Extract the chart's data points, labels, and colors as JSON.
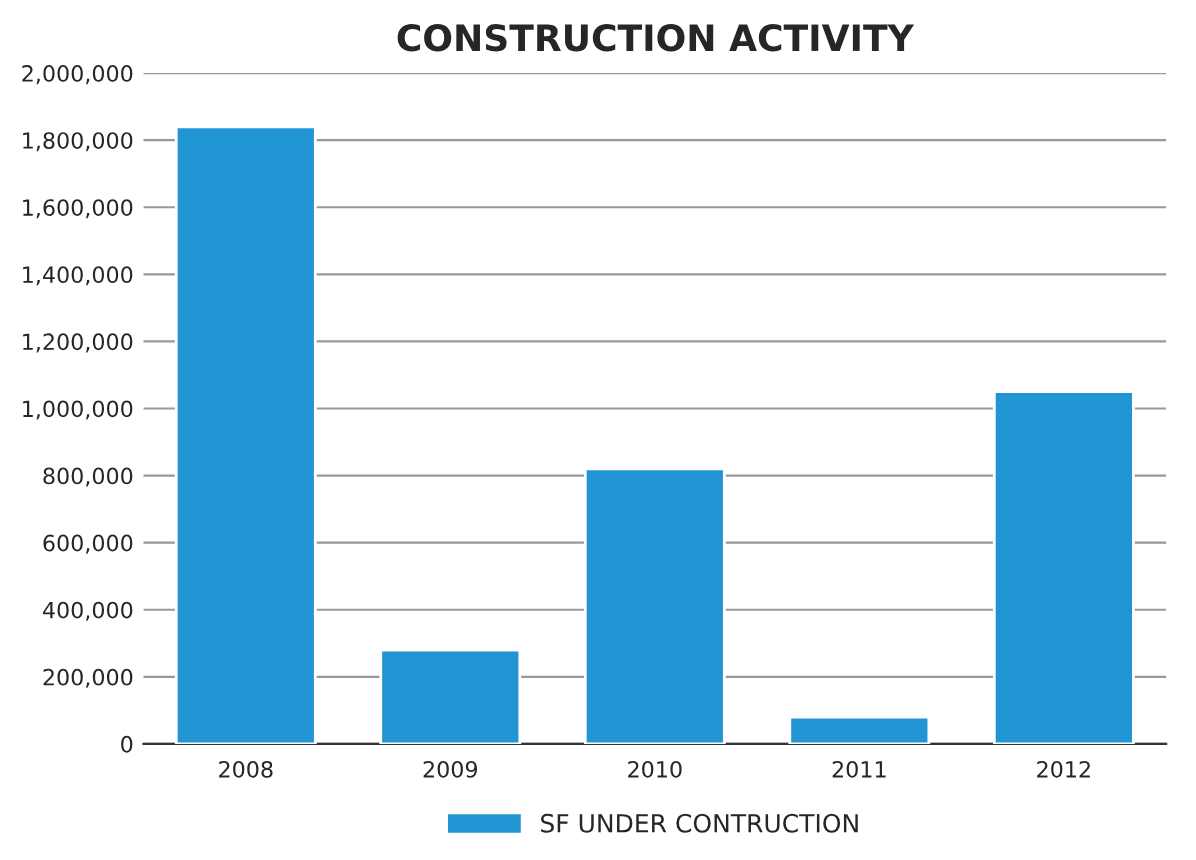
{
  "chart_data": {
    "type": "bar",
    "title": "CONSTRUCTION ACTIVITY",
    "categories": [
      "2008",
      "2009",
      "2010",
      "2011",
      "2012"
    ],
    "series": [
      {
        "name": "SF UNDER CONTRUCTION",
        "color": "#2195d3",
        "values": [
          1840000,
          280000,
          820000,
          80000,
          1050000
        ]
      }
    ],
    "ylim": [
      0,
      2000000
    ],
    "yticks": [
      {
        "value": 0,
        "label": "0"
      },
      {
        "value": 200000,
        "label": "200,000"
      },
      {
        "value": 400000,
        "label": "400,000"
      },
      {
        "value": 600000,
        "label": "600,000"
      },
      {
        "value": 800000,
        "label": "800,000"
      },
      {
        "value": 1000000,
        "label": "1,000,000"
      },
      {
        "value": 1200000,
        "label": "1,200,000"
      },
      {
        "value": 1400000,
        "label": "1,400,000"
      },
      {
        "value": 1600000,
        "label": "1,600,000"
      },
      {
        "value": 1800000,
        "label": "1,800,000"
      },
      {
        "value": 2000000,
        "label": "2,000,000"
      }
    ],
    "grid": "y",
    "legend": "bottom"
  }
}
